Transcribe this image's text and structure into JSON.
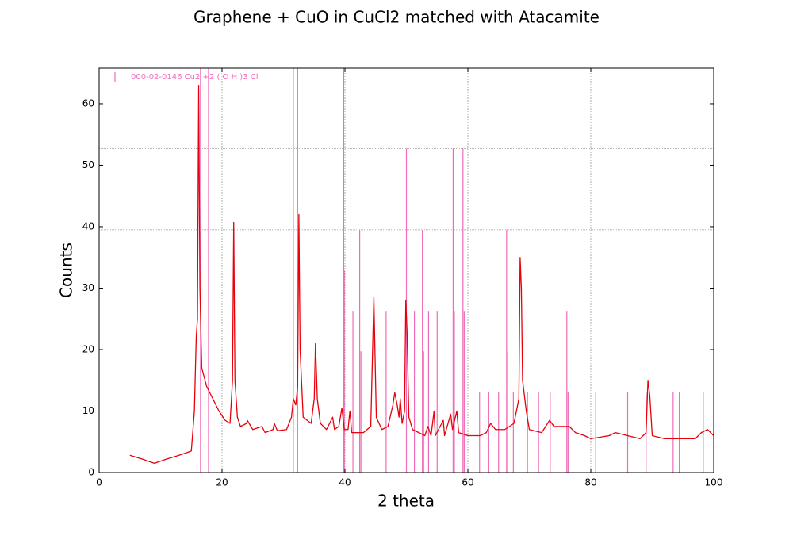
{
  "chart_data": {
    "type": "line",
    "title": "Graphene + CuO in CuCl2 matched with Atacamite",
    "x_label": "2 theta",
    "y_label": "Counts",
    "xlim": [
      0,
      100
    ],
    "ylim": [
      0,
      65.8
    ],
    "xticks": [
      0,
      20,
      40,
      60,
      80,
      100
    ],
    "yticks": [
      0,
      10,
      20,
      30,
      40,
      50,
      60
    ],
    "grid_x": [
      20,
      40,
      60,
      80
    ],
    "grid_y": [
      13.1,
      39.5,
      52.7
    ],
    "legend": "upper left",
    "series": [
      {
        "name": "000-02-0146 Cu2 +2 ( O H )3 Cl",
        "type": "stick",
        "color": "#f06cb8",
        "x": [
          16.5,
          17.8,
          31.6,
          32.3,
          39.8,
          39.9,
          41.3,
          42.4,
          42.6,
          46.7,
          50.0,
          51.3,
          52.6,
          52.8,
          53.6,
          55.0,
          57.6,
          57.8,
          59.2,
          59.4,
          61.9,
          63.4,
          65.0,
          66.3,
          66.5,
          67.4,
          69.7,
          71.5,
          73.4,
          76.1,
          76.3,
          80.8,
          86.0,
          89.0,
          93.4,
          94.4,
          98.3
        ],
        "values": [
          65.8,
          65.8,
          65.8,
          65.8,
          65.8,
          33,
          26.3,
          39.5,
          19.7,
          26.3,
          52.7,
          26.3,
          39.5,
          19.7,
          26.3,
          26.3,
          52.7,
          26.3,
          52.7,
          26.3,
          13.1,
          13.1,
          13.1,
          39.5,
          19.7,
          13.1,
          13.1,
          13.1,
          13.1,
          26.3,
          13.1,
          13.1,
          13.1,
          13.1,
          13.1,
          13.1,
          13.1
        ]
      },
      {
        "type": "line",
        "color": "#e8000b",
        "x": [
          5,
          7,
          9,
          11,
          13,
          15,
          15.5,
          15.8,
          16.0,
          16.2,
          16.4,
          16.7,
          17.5,
          18.5,
          19.5,
          20.5,
          21.3,
          21.7,
          21.9,
          22.1,
          22.5,
          23,
          24,
          24.1,
          25,
          26.5,
          27,
          28.3,
          28.5,
          29,
          30.5,
          31.3,
          31.6,
          32,
          32.3,
          32.5,
          32.7,
          33.2,
          34.5,
          35.0,
          35.2,
          35.5,
          36,
          37,
          38,
          38.3,
          39,
          39.5,
          39.9,
          40.5,
          40.8,
          41.1,
          43,
          44.2,
          44.7,
          45.1,
          46,
          47,
          47.8,
          48.1,
          48.5,
          48.8,
          49,
          49.3,
          49.7,
          49.9,
          50.1,
          50.4,
          51,
          52,
          53,
          53.5,
          54,
          54.5,
          54.7,
          56,
          56.2,
          57.2,
          57.5,
          58.2,
          58.5,
          60,
          62,
          63,
          63.7,
          64.5,
          66,
          67.5,
          68.3,
          68.5,
          68.7,
          68.9,
          69.5,
          70,
          72,
          73.3,
          74,
          76.5,
          77.5,
          79,
          80,
          83,
          84,
          86,
          88,
          89,
          89.3,
          89.6,
          90,
          92,
          95,
          97,
          98,
          99,
          100
        ],
        "values": [
          2.8,
          2.2,
          1.5,
          2.2,
          2.8,
          3.5,
          10,
          22,
          25,
          63,
          30,
          17,
          14,
          12,
          10,
          8.5,
          8,
          15,
          40.7,
          15,
          9,
          7.5,
          8,
          8.5,
          7,
          7.5,
          6.5,
          7,
          8,
          6.8,
          7,
          9,
          12,
          11,
          14,
          42,
          20,
          9,
          8,
          12,
          21,
          12,
          8,
          7,
          9,
          7,
          7.5,
          10.5,
          7,
          7,
          10,
          6.5,
          6.5,
          7.5,
          28.5,
          9,
          7,
          7.5,
          11,
          13,
          11,
          9,
          12,
          8,
          10,
          28,
          23,
          9,
          7,
          6.5,
          6,
          7.5,
          6,
          10,
          6,
          8.5,
          6,
          9.5,
          7,
          10,
          6.5,
          6,
          6,
          6.5,
          8,
          7,
          7,
          8,
          12,
          35,
          30,
          15,
          10,
          7,
          6.5,
          8.5,
          7.5,
          7.5,
          6.5,
          6,
          5.5,
          6,
          6.5,
          6,
          5.5,
          6.5,
          15,
          12.5,
          6,
          5.5,
          5.5,
          5.5,
          6.5,
          7,
          6
        ]
      }
    ]
  }
}
